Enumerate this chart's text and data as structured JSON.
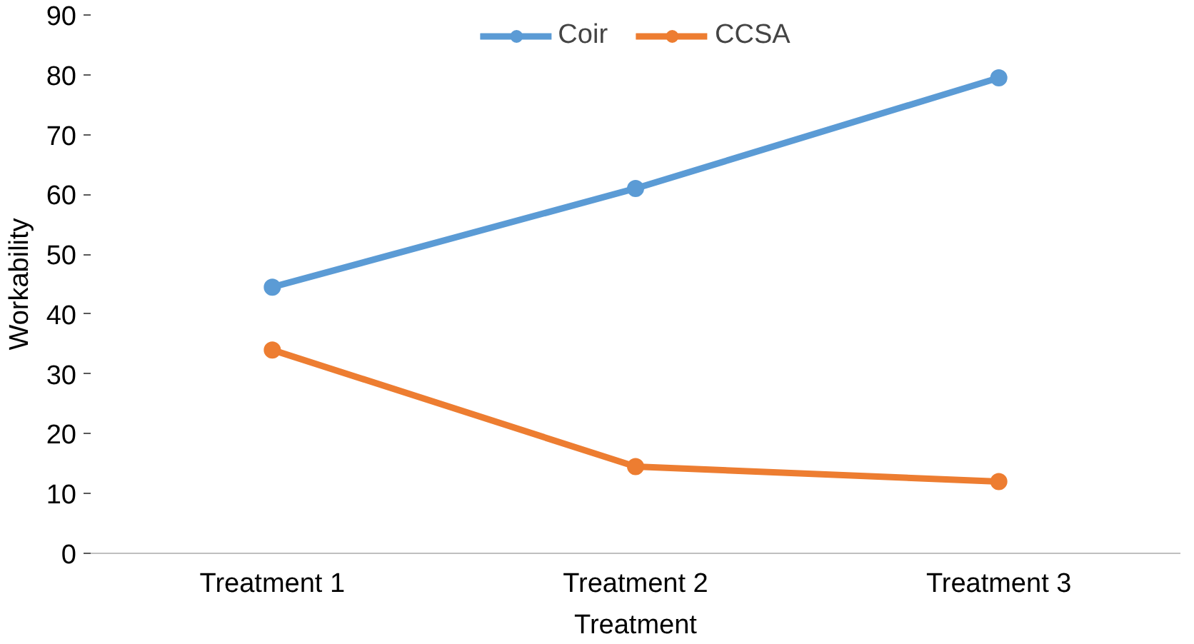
{
  "chart_data": {
    "type": "line",
    "xlabel": "Treatment",
    "ylabel": "Workability",
    "categories": [
      "Treatment 1",
      "Treatment 2",
      "Treatment 3"
    ],
    "series": [
      {
        "name": "Coir",
        "color": "#5b9bd5",
        "values": [
          44.5,
          61,
          79.5
        ]
      },
      {
        "name": "CCSA",
        "color": "#ed7d31",
        "values": [
          34,
          14.5,
          12
        ]
      }
    ],
    "ylim": [
      0,
      90
    ],
    "yticks": [
      0,
      10,
      20,
      30,
      40,
      50,
      60,
      70,
      80,
      90
    ],
    "grid": false,
    "legend": "top",
    "marker": "circle",
    "line_style": "solid"
  }
}
